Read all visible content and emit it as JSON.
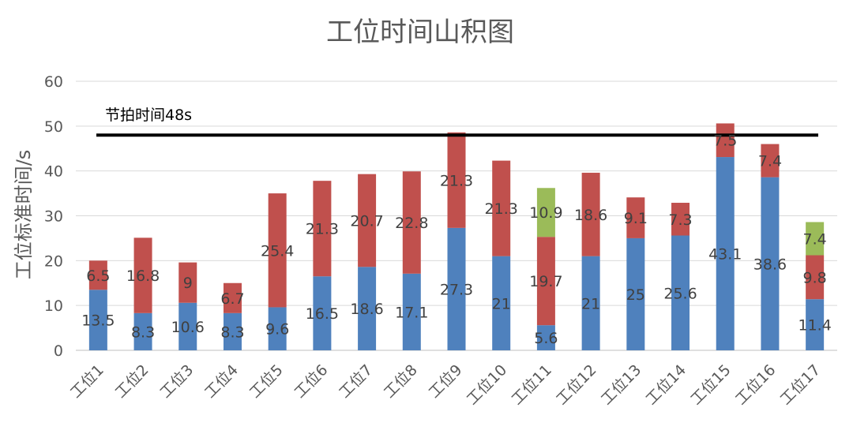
{
  "chart_data": {
    "type": "bar",
    "stacked": true,
    "title": "工位时间山积图",
    "xlabel": "",
    "ylabel": "工位标准时间/s",
    "ylim": [
      0,
      60
    ],
    "yticks": [
      0,
      10,
      20,
      30,
      40,
      50,
      60
    ],
    "grid": true,
    "legend": "none",
    "categories": [
      "工位1",
      "工位2",
      "工位3",
      "工位4",
      "工位5",
      "工位6",
      "工位7",
      "工位8",
      "工位9",
      "工位10",
      "工位11",
      "工位12",
      "工位13",
      "工位14",
      "工位15",
      "工位16",
      "工位17"
    ],
    "series": [
      {
        "color": "#4F81BD",
        "values": [
          13.5,
          8.3,
          10.6,
          8.3,
          9.6,
          16.5,
          18.6,
          17.1,
          27.3,
          21,
          5.6,
          21,
          25,
          25.6,
          43.1,
          38.6,
          11.4
        ]
      },
      {
        "color": "#C0504D",
        "values": [
          6.5,
          16.8,
          9,
          6.7,
          25.4,
          21.3,
          20.7,
          22.8,
          21.3,
          21.3,
          19.7,
          18.6,
          9.1,
          7.3,
          7.5,
          7.4,
          9.8
        ]
      },
      {
        "color": "#9BBB59",
        "values": [
          null,
          null,
          null,
          null,
          null,
          null,
          null,
          null,
          null,
          null,
          10.9,
          null,
          null,
          null,
          null,
          null,
          7.4
        ]
      }
    ],
    "reference_line": {
      "value": 48,
      "label": "节拍时间48s",
      "color": "#000000"
    }
  }
}
